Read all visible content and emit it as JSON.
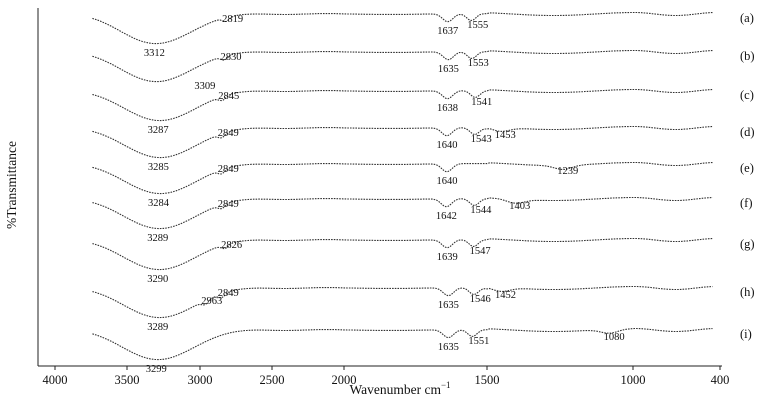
{
  "chart_data": {
    "type": "line",
    "xlabel": "Wavenumber cm",
    "xlabel_superscript": "−1",
    "ylabel": "%Transmittance",
    "xlim": [
      4000,
      400
    ],
    "x_reversed": true,
    "x_ticks": [
      4000,
      3500,
      3000,
      2500,
      2000,
      1500,
      1000,
      400
    ],
    "y_ticks_shown": false,
    "grid": false,
    "series": [
      {
        "name": "(a)",
        "peaks": [
          {
            "wn": 3312,
            "label": "3312"
          },
          {
            "wn": 2819,
            "label": "2819"
          },
          {
            "wn": 1637,
            "label": "1637"
          },
          {
            "wn": 1555,
            "label": "1555"
          }
        ]
      },
      {
        "name": "(b)",
        "peaks": [
          {
            "wn": 3309,
            "label": "3309"
          },
          {
            "wn": 2830,
            "label": "2830"
          },
          {
            "wn": 1635,
            "label": "1635"
          },
          {
            "wn": 1553,
            "label": "1553"
          }
        ]
      },
      {
        "name": "(c)",
        "peaks": [
          {
            "wn": 3287,
            "label": "3287"
          },
          {
            "wn": 2845,
            "label": "2845"
          },
          {
            "wn": 1638,
            "label": "1638"
          },
          {
            "wn": 1541,
            "label": "1541"
          }
        ]
      },
      {
        "name": "(d)",
        "peaks": [
          {
            "wn": 3285,
            "label": "3285"
          },
          {
            "wn": 2849,
            "label": "2849"
          },
          {
            "wn": 1640,
            "label": "1640"
          },
          {
            "wn": 1543,
            "label": "1543"
          },
          {
            "wn": 1453,
            "label": "1453"
          }
        ]
      },
      {
        "name": "(e)",
        "peaks": [
          {
            "wn": 3284,
            "label": "3284"
          },
          {
            "wn": 2849,
            "label": "2849"
          },
          {
            "wn": 1640,
            "label": "1640"
          },
          {
            "wn": 1239,
            "label": "1239"
          }
        ]
      },
      {
        "name": "(f)",
        "peaks": [
          {
            "wn": 3289,
            "label": "3289"
          },
          {
            "wn": 2849,
            "label": "2849"
          },
          {
            "wn": 1642,
            "label": "1642"
          },
          {
            "wn": 1544,
            "label": "1544"
          },
          {
            "wn": 1403,
            "label": "1403"
          }
        ]
      },
      {
        "name": "(g)",
        "peaks": [
          {
            "wn": 3290,
            "label": "3290"
          },
          {
            "wn": 2826,
            "label": "2826"
          },
          {
            "wn": 1639,
            "label": "1639"
          },
          {
            "wn": 1547,
            "label": "1547"
          }
        ]
      },
      {
        "name": "(h)",
        "peaks": [
          {
            "wn": 3289,
            "label": "3289"
          },
          {
            "wn": 2963,
            "label": "2963"
          },
          {
            "wn": 2849,
            "label": "2849"
          },
          {
            "wn": 1635,
            "label": "1635"
          },
          {
            "wn": 1546,
            "label": "1546"
          },
          {
            "wn": 1452,
            "label": "1452"
          }
        ]
      },
      {
        "name": "(i)",
        "peaks": [
          {
            "wn": 3299,
            "label": "3299"
          },
          {
            "wn": 1635,
            "label": "1635"
          },
          {
            "wn": 1551,
            "label": "1551"
          },
          {
            "wn": 1080,
            "label": "1080"
          }
        ]
      }
    ]
  }
}
